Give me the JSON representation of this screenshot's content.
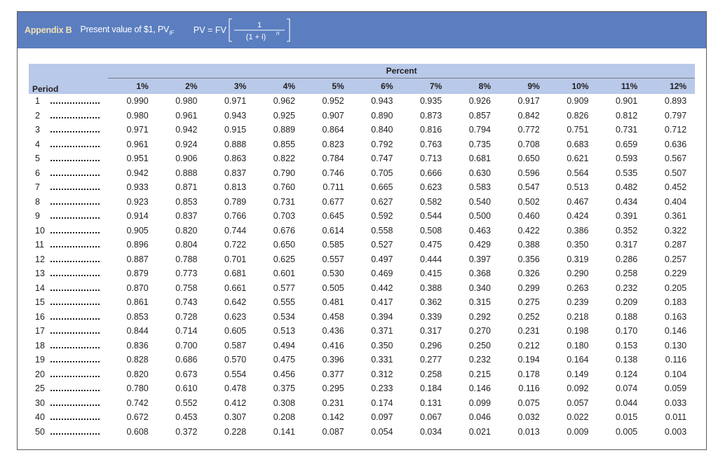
{
  "banner": {
    "appendix_label": "Appendix B",
    "title": "Present value of $1, PV",
    "title_subscript": "IF",
    "formula_lhs": "PV = FV",
    "formula_numerator": "1",
    "formula_denominator": "(1 + i)",
    "formula_exponent": "n",
    "background_color": "#5b7ec0",
    "label_color": "#f0e2b4"
  },
  "table": {
    "group_label": "Percent",
    "period_label": "Period",
    "header_band_color": "#b9c9e9",
    "rates": [
      "1%",
      "2%",
      "3%",
      "4%",
      "5%",
      "6%",
      "7%",
      "8%",
      "9%",
      "10%",
      "11%",
      "12%"
    ],
    "rows": [
      {
        "period": "1",
        "values": [
          "0.990",
          "0.980",
          "0.971",
          "0.962",
          "0.952",
          "0.943",
          "0.935",
          "0.926",
          "0.917",
          "0.909",
          "0.901",
          "0.893"
        ]
      },
      {
        "period": "2",
        "values": [
          "0.980",
          "0.961",
          "0.943",
          "0.925",
          "0.907",
          "0.890",
          "0.873",
          "0.857",
          "0.842",
          "0.826",
          "0.812",
          "0.797"
        ]
      },
      {
        "period": "3",
        "values": [
          "0.971",
          "0.942",
          "0.915",
          "0.889",
          "0.864",
          "0.840",
          "0.816",
          "0.794",
          "0.772",
          "0.751",
          "0.731",
          "0.712"
        ]
      },
      {
        "period": "4",
        "values": [
          "0.961",
          "0.924",
          "0.888",
          "0.855",
          "0.823",
          "0.792",
          "0.763",
          "0.735",
          "0.708",
          "0.683",
          "0.659",
          "0.636"
        ]
      },
      {
        "period": "5",
        "values": [
          "0.951",
          "0.906",
          "0.863",
          "0.822",
          "0.784",
          "0.747",
          "0.713",
          "0.681",
          "0.650",
          "0.621",
          "0.593",
          "0.567"
        ]
      },
      {
        "period": "6",
        "values": [
          "0.942",
          "0.888",
          "0.837",
          "0.790",
          "0.746",
          "0.705",
          "0.666",
          "0.630",
          "0.596",
          "0.564",
          "0.535",
          "0.507"
        ]
      },
      {
        "period": "7",
        "values": [
          "0.933",
          "0.871",
          "0.813",
          "0.760",
          "0.711",
          "0.665",
          "0.623",
          "0.583",
          "0.547",
          "0.513",
          "0.482",
          "0.452"
        ]
      },
      {
        "period": "8",
        "values": [
          "0.923",
          "0.853",
          "0.789",
          "0.731",
          "0.677",
          "0.627",
          "0.582",
          "0.540",
          "0.502",
          "0.467",
          "0.434",
          "0.404"
        ]
      },
      {
        "period": "9",
        "values": [
          "0.914",
          "0.837",
          "0.766",
          "0.703",
          "0.645",
          "0.592",
          "0.544",
          "0.500",
          "0.460",
          "0.424",
          "0.391",
          "0.361"
        ]
      },
      {
        "period": "10",
        "values": [
          "0.905",
          "0.820",
          "0.744",
          "0.676",
          "0.614",
          "0.558",
          "0.508",
          "0.463",
          "0.422",
          "0.386",
          "0.352",
          "0.322"
        ]
      },
      {
        "period": "11",
        "values": [
          "0.896",
          "0.804",
          "0.722",
          "0.650",
          "0.585",
          "0.527",
          "0.475",
          "0.429",
          "0.388",
          "0.350",
          "0.317",
          "0.287"
        ]
      },
      {
        "period": "12",
        "values": [
          "0.887",
          "0.788",
          "0.701",
          "0.625",
          "0.557",
          "0.497",
          "0.444",
          "0.397",
          "0.356",
          "0.319",
          "0.286",
          "0.257"
        ]
      },
      {
        "period": "13",
        "values": [
          "0.879",
          "0.773",
          "0.681",
          "0.601",
          "0.530",
          "0.469",
          "0.415",
          "0.368",
          "0.326",
          "0.290",
          "0.258",
          "0.229"
        ]
      },
      {
        "period": "14",
        "values": [
          "0.870",
          "0.758",
          "0.661",
          "0.577",
          "0.505",
          "0.442",
          "0.388",
          "0.340",
          "0.299",
          "0.263",
          "0.232",
          "0.205"
        ]
      },
      {
        "period": "15",
        "values": [
          "0.861",
          "0.743",
          "0.642",
          "0.555",
          "0.481",
          "0.417",
          "0.362",
          "0.315",
          "0.275",
          "0.239",
          "0.209",
          "0.183"
        ]
      },
      {
        "period": "16",
        "values": [
          "0.853",
          "0.728",
          "0.623",
          "0.534",
          "0.458",
          "0.394",
          "0.339",
          "0.292",
          "0.252",
          "0.218",
          "0.188",
          "0.163"
        ]
      },
      {
        "period": "17",
        "values": [
          "0.844",
          "0.714",
          "0.605",
          "0.513",
          "0.436",
          "0.371",
          "0.317",
          "0.270",
          "0.231",
          "0.198",
          "0.170",
          "0.146"
        ]
      },
      {
        "period": "18",
        "values": [
          "0.836",
          "0.700",
          "0.587",
          "0.494",
          "0.416",
          "0.350",
          "0.296",
          "0.250",
          "0.212",
          "0.180",
          "0.153",
          "0.130"
        ]
      },
      {
        "period": "19",
        "values": [
          "0.828",
          "0.686",
          "0.570",
          "0.475",
          "0.396",
          "0.331",
          "0.277",
          "0.232",
          "0.194",
          "0.164",
          "0.138",
          "0.116"
        ]
      },
      {
        "period": "20",
        "values": [
          "0.820",
          "0.673",
          "0.554",
          "0.456",
          "0.377",
          "0.312",
          "0.258",
          "0.215",
          "0.178",
          "0.149",
          "0.124",
          "0.104"
        ]
      },
      {
        "period": "25",
        "values": [
          "0.780",
          "0.610",
          "0.478",
          "0.375",
          "0.295",
          "0.233",
          "0.184",
          "0.146",
          "0.116",
          "0.092",
          "0.074",
          "0.059"
        ]
      },
      {
        "period": "30",
        "values": [
          "0.742",
          "0.552",
          "0.412",
          "0.308",
          "0.231",
          "0.174",
          "0.131",
          "0.099",
          "0.075",
          "0.057",
          "0.044",
          "0.033"
        ]
      },
      {
        "period": "40",
        "values": [
          "0.672",
          "0.453",
          "0.307",
          "0.208",
          "0.142",
          "0.097",
          "0.067",
          "0.046",
          "0.032",
          "0.022",
          "0.015",
          "0.011"
        ]
      },
      {
        "period": "50",
        "values": [
          "0.608",
          "0.372",
          "0.228",
          "0.141",
          "0.087",
          "0.054",
          "0.034",
          "0.021",
          "0.013",
          "0.009",
          "0.005",
          "0.003"
        ]
      }
    ]
  }
}
